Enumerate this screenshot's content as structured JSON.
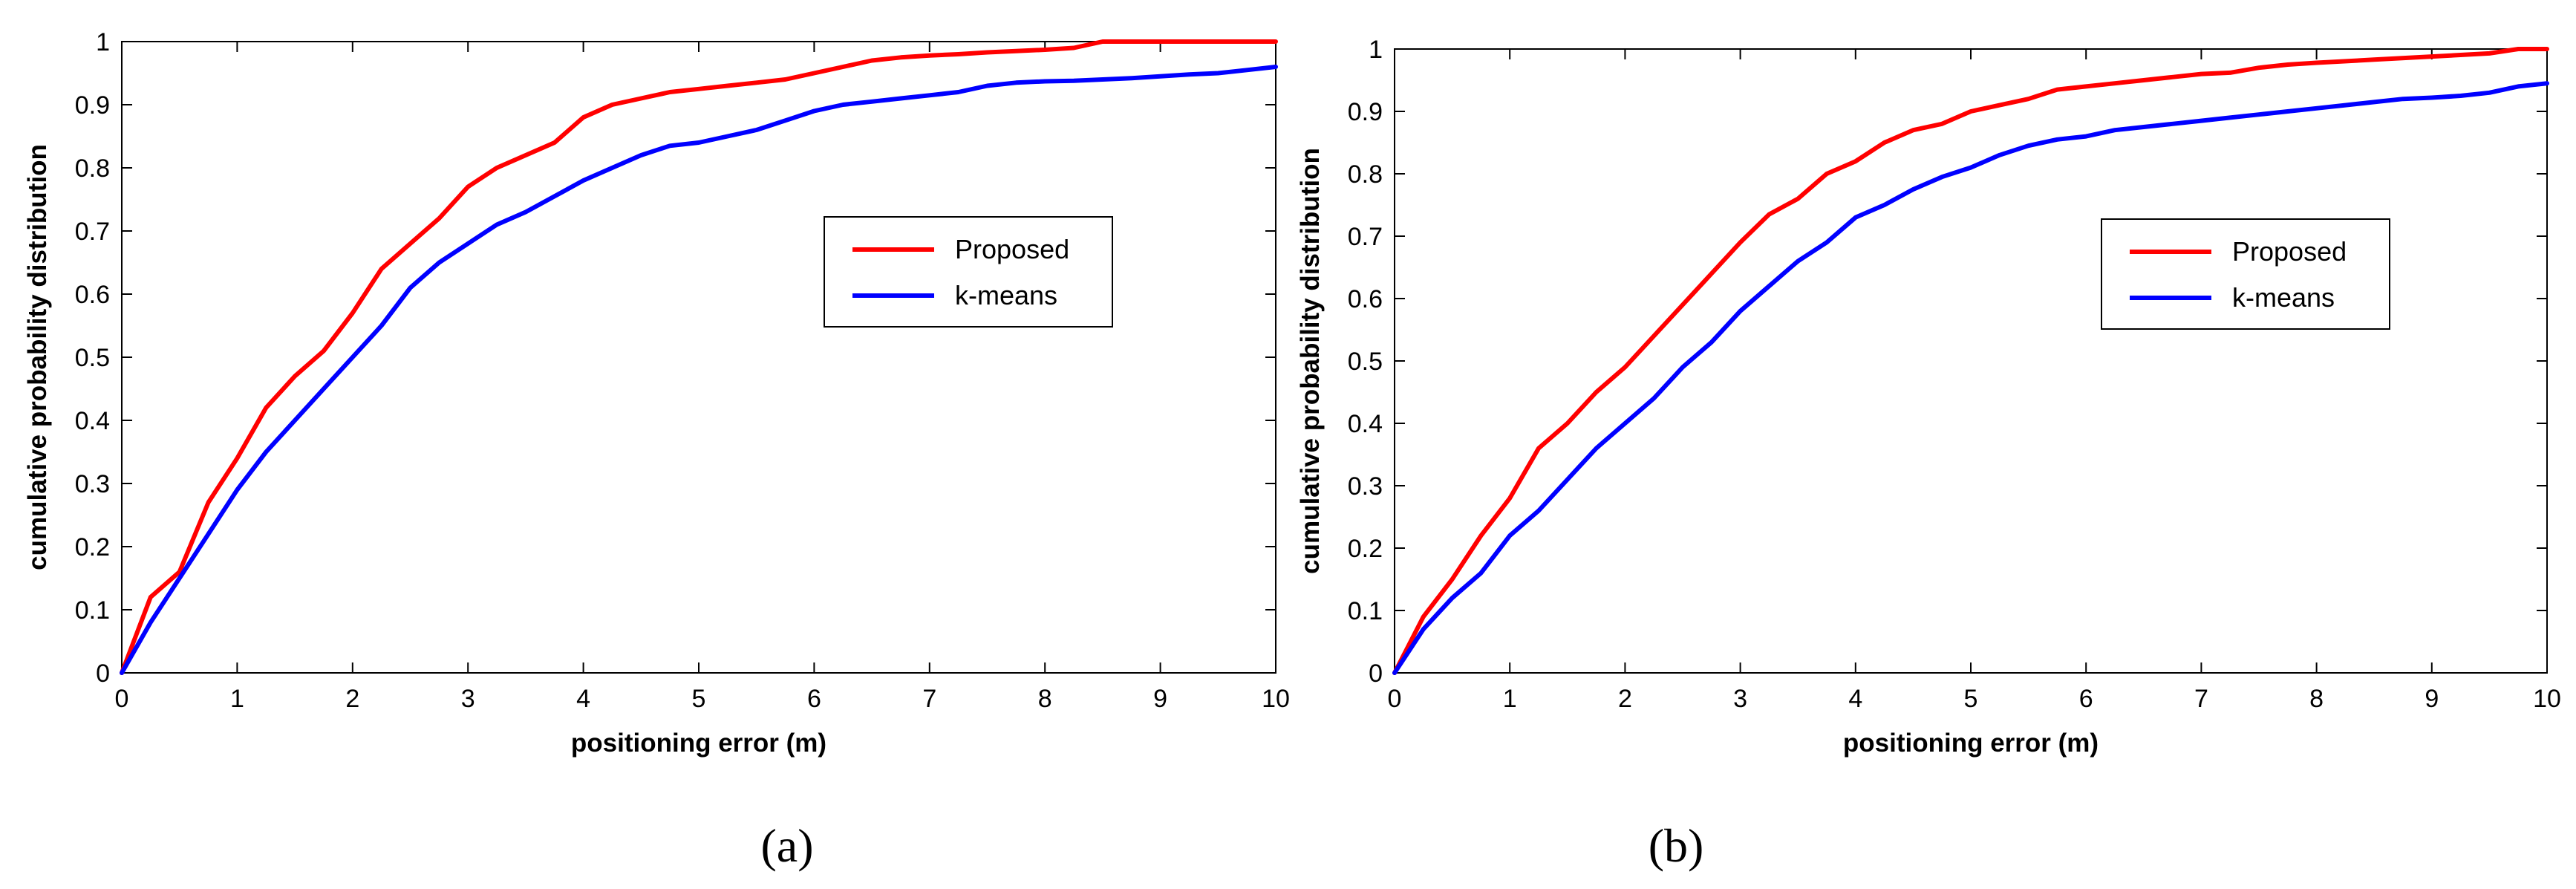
{
  "chart_data": [
    {
      "id": "a",
      "type": "line",
      "caption": "(a)",
      "caption_letter": "a",
      "xlabel": "positioning error (m)",
      "ylabel": "cumulative probability distribution",
      "xlim": [
        0,
        10
      ],
      "ylim": [
        0,
        1
      ],
      "xticks": [
        "0",
        "1",
        "2",
        "3",
        "4",
        "5",
        "6",
        "7",
        "8",
        "9",
        "10"
      ],
      "yticks": [
        "0",
        "0.1",
        "0.2",
        "0.3",
        "0.4",
        "0.5",
        "0.6",
        "0.7",
        "0.8",
        "0.9",
        "1"
      ],
      "legend_position": "center-right",
      "series": [
        {
          "name": "Proposed",
          "color": "#ff0000",
          "x": [
            0,
            0.25,
            0.5,
            0.75,
            1.0,
            1.25,
            1.5,
            1.75,
            2.0,
            2.25,
            2.5,
            2.75,
            3.0,
            3.25,
            3.5,
            3.75,
            4.0,
            4.25,
            4.5,
            4.75,
            5.0,
            5.25,
            5.5,
            5.75,
            6.0,
            6.25,
            6.5,
            6.75,
            7.0,
            7.25,
            7.5,
            7.75,
            8.0,
            8.25,
            8.5,
            9.0,
            9.5,
            10.0
          ],
          "y": [
            0,
            0.12,
            0.16,
            0.27,
            0.34,
            0.42,
            0.47,
            0.51,
            0.57,
            0.64,
            0.68,
            0.72,
            0.77,
            0.8,
            0.82,
            0.84,
            0.88,
            0.9,
            0.91,
            0.92,
            0.925,
            0.93,
            0.935,
            0.94,
            0.95,
            0.96,
            0.97,
            0.975,
            0.978,
            0.98,
            0.983,
            0.985,
            0.987,
            0.99,
            1.0,
            1.0,
            1.0,
            1.0
          ]
        },
        {
          "name": "k-means",
          "color": "#0000ff",
          "x": [
            0,
            0.25,
            0.5,
            0.75,
            1.0,
            1.25,
            1.5,
            1.75,
            2.0,
            2.25,
            2.5,
            2.75,
            3.0,
            3.25,
            3.5,
            3.75,
            4.0,
            4.25,
            4.5,
            4.75,
            5.0,
            5.25,
            5.5,
            5.75,
            6.0,
            6.25,
            6.5,
            6.75,
            7.0,
            7.25,
            7.5,
            7.75,
            8.0,
            8.25,
            8.5,
            8.75,
            9.0,
            9.25,
            9.5,
            9.75,
            10.0
          ],
          "y": [
            0,
            0.08,
            0.15,
            0.22,
            0.29,
            0.35,
            0.4,
            0.45,
            0.5,
            0.55,
            0.61,
            0.65,
            0.68,
            0.71,
            0.73,
            0.755,
            0.78,
            0.8,
            0.82,
            0.835,
            0.84,
            0.85,
            0.86,
            0.875,
            0.89,
            0.9,
            0.905,
            0.91,
            0.915,
            0.92,
            0.93,
            0.935,
            0.937,
            0.938,
            0.94,
            0.942,
            0.945,
            0.948,
            0.95,
            0.955,
            0.96
          ]
        }
      ]
    },
    {
      "id": "b",
      "type": "line",
      "caption": "(b)",
      "caption_letter": "b",
      "xlabel": "positioning error (m)",
      "ylabel": "cumulative probability distribution",
      "xlim": [
        0,
        10
      ],
      "ylim": [
        0,
        1
      ],
      "xticks": [
        "0",
        "1",
        "2",
        "3",
        "4",
        "5",
        "6",
        "7",
        "8",
        "9",
        "10"
      ],
      "yticks": [
        "0",
        "0.1",
        "0.2",
        "0.3",
        "0.4",
        "0.5",
        "0.6",
        "0.7",
        "0.8",
        "0.9",
        "1"
      ],
      "legend_position": "center-right",
      "series": [
        {
          "name": "Proposed",
          "color": "#ff0000",
          "x": [
            0,
            0.25,
            0.5,
            0.75,
            1.0,
            1.25,
            1.5,
            1.75,
            2.0,
            2.25,
            2.5,
            2.75,
            3.0,
            3.25,
            3.5,
            3.75,
            4.0,
            4.25,
            4.5,
            4.75,
            5.0,
            5.25,
            5.5,
            5.75,
            6.0,
            6.25,
            6.5,
            6.75,
            7.0,
            7.25,
            7.5,
            7.75,
            8.0,
            8.5,
            9.0,
            9.5,
            9.75,
            10.0
          ],
          "y": [
            0,
            0.09,
            0.15,
            0.22,
            0.28,
            0.36,
            0.4,
            0.45,
            0.49,
            0.54,
            0.59,
            0.64,
            0.69,
            0.735,
            0.76,
            0.8,
            0.82,
            0.85,
            0.87,
            0.88,
            0.9,
            0.91,
            0.92,
            0.935,
            0.94,
            0.945,
            0.95,
            0.955,
            0.96,
            0.962,
            0.97,
            0.975,
            0.978,
            0.983,
            0.988,
            0.993,
            1.0,
            1.0
          ]
        },
        {
          "name": "k-means",
          "color": "#0000ff",
          "x": [
            0,
            0.25,
            0.5,
            0.75,
            1.0,
            1.25,
            1.5,
            1.75,
            2.0,
            2.25,
            2.5,
            2.75,
            3.0,
            3.25,
            3.5,
            3.75,
            4.0,
            4.25,
            4.5,
            4.75,
            5.0,
            5.25,
            5.5,
            5.75,
            6.0,
            6.25,
            6.5,
            6.75,
            7.0,
            7.25,
            7.5,
            7.75,
            8.0,
            8.25,
            8.5,
            8.75,
            9.0,
            9.25,
            9.5,
            9.75,
            10.0
          ],
          "y": [
            0,
            0.07,
            0.12,
            0.16,
            0.22,
            0.26,
            0.31,
            0.36,
            0.4,
            0.44,
            0.49,
            0.53,
            0.58,
            0.62,
            0.66,
            0.69,
            0.73,
            0.75,
            0.775,
            0.795,
            0.81,
            0.83,
            0.845,
            0.855,
            0.86,
            0.87,
            0.875,
            0.88,
            0.885,
            0.89,
            0.895,
            0.9,
            0.905,
            0.91,
            0.915,
            0.92,
            0.922,
            0.925,
            0.93,
            0.94,
            0.945
          ]
        }
      ]
    }
  ]
}
